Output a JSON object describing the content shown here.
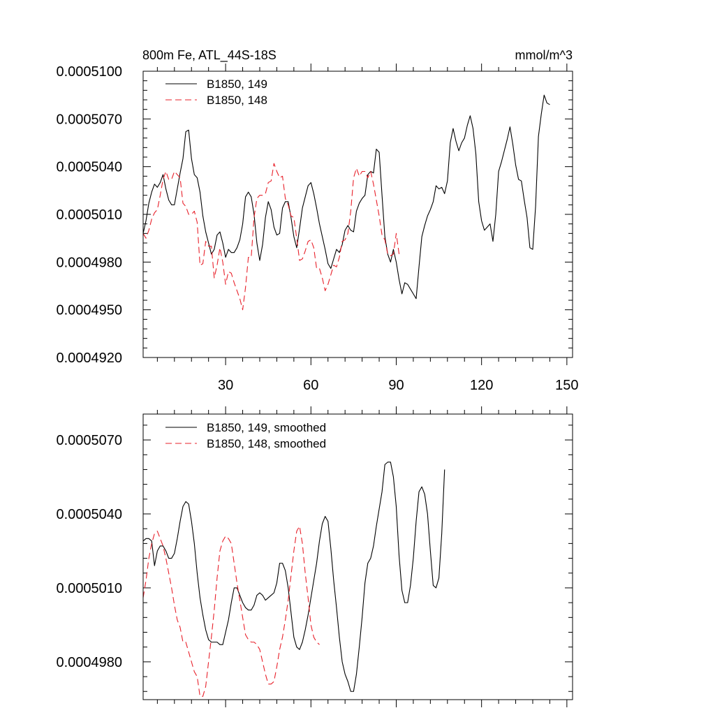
{
  "chart_data": [
    {
      "type": "line",
      "title": "800m Fe, ATL_44S-18S",
      "units": "mmol/m^3",
      "xlim": [
        1,
        152
      ],
      "ylim": [
        0.000492,
        0.00051
      ],
      "xticks": [
        30,
        60,
        90,
        120,
        150
      ],
      "xtick_labels": [
        "30",
        "60",
        "90",
        "120",
        "150"
      ],
      "yticks": [
        0.000492,
        0.000495,
        0.000498,
        0.000501,
        0.000504,
        0.000507,
        0.00051
      ],
      "ytick_labels": [
        "0.0004920",
        "0.0004950",
        "0.0004980",
        "0.0005010",
        "0.0005040",
        "0.0005070",
        "0.0005100"
      ],
      "legend_position": "top-left",
      "series": [
        {
          "name": "B1850, 149",
          "color": "#000000",
          "dash": "solid",
          "x_start": 1,
          "values": [
            0.0004998,
            0.0005006,
            0.0005017,
            0.0005024,
            0.0005029,
            0.0005027,
            0.000503,
            0.0005035,
            0.0005026,
            0.0005019,
            0.0005016,
            0.0005016,
            0.0005026,
            0.0005036,
            0.0005045,
            0.0005062,
            0.0005063,
            0.0005045,
            0.0005035,
            0.0005033,
            0.0005024,
            0.0005009,
            0.0004999,
            0.0004992,
            0.0004985,
            0.0004988,
            0.0004997,
            0.0004999,
            0.0004992,
            0.0004983,
            0.0004988,
            0.0004986,
            0.0004986,
            0.0004989,
            0.0004994,
            0.0005004,
            0.0005021,
            0.0005024,
            0.0005021,
            0.000501,
            0.0004992,
            0.0004981,
            0.0004991,
            0.0005008,
            0.0005018,
            0.0005013,
            0.0005002,
            0.0004997,
            0.0004998,
            0.0005014,
            0.0005018,
            0.0005018,
            0.0005008,
            0.0004996,
            0.0004989,
            0.0005001,
            0.0005014,
            0.0005021,
            0.0005028,
            0.000503,
            0.0005023,
            0.0005014,
            0.0005004,
            0.0004996,
            0.0004988,
            0.0004979,
            0.0004976,
            0.0004982,
            0.0004988,
            0.0004986,
            0.0004991,
            0.0005,
            0.0005003,
            0.0005,
            0.0004999,
            0.0005012,
            0.0005017,
            0.000502,
            0.0005022,
            0.0005035,
            0.0005037,
            0.0005036,
            0.0005051,
            0.0005049,
            0.0005022,
            0.0004996,
            0.0004985,
            0.000498,
            0.0004988,
            0.000498,
            0.0004969,
            0.000496,
            0.0004967,
            0.0004966,
            0.0004963,
            0.000496,
            0.0004957,
            0.0004977,
            0.0004996,
            0.0005003,
            0.0005009,
            0.0005013,
            0.0005018,
            0.0005028,
            0.0005026,
            0.0005027,
            0.0005023,
            0.0005031,
            0.0005055,
            0.0005064,
            0.0005056,
            0.000505,
            0.0005055,
            0.0005058,
            0.0005066,
            0.0005072,
            0.0005064,
            0.0005048,
            0.0005018,
            0.0005006,
            0.0005,
            0.0005002,
            0.0005004,
            0.0004993,
            0.000501,
            0.0005037,
            0.0005043,
            0.000505,
            0.0005057,
            0.0005065,
            0.0005054,
            0.0005041,
            0.0005032,
            0.0005031,
            0.0005019,
            0.0005008,
            0.0004989,
            0.0004988,
            0.0005015,
            0.0005059,
            0.0005073,
            0.0005085,
            0.000508,
            0.0005079
          ]
        },
        {
          "name": "B1850, 148",
          "color": "#e8202a",
          "dash": "dashed",
          "x_start": 1,
          "values": [
            0.0004998,
            0.0004995,
            0.0005,
            0.0005007,
            0.0005011,
            0.0005013,
            0.0005022,
            0.0005032,
            0.0005037,
            0.0005032,
            0.0005032,
            0.0005037,
            0.0005035,
            0.0005033,
            0.0005017,
            0.0005015,
            0.000501,
            0.000501,
            0.0005012,
            0.0005005,
            0.0004978,
            0.0004979,
            0.0004993,
            0.000499,
            0.000499,
            0.000497,
            0.0004978,
            0.0004989,
            0.000498,
            0.0004966,
            0.0004974,
            0.0004973,
            0.0004967,
            0.0004962,
            0.0004957,
            0.000495,
            0.0004964,
            0.0004983,
            0.0004983,
            0.0005008,
            0.000502,
            0.0005022,
            0.0005022,
            0.0005023,
            0.000503,
            0.0005031,
            0.0005042,
            0.0005037,
            0.0005033,
            0.0005034,
            0.000502,
            0.0005016,
            0.0005009,
            0.0005008,
            0.0004995,
            0.0004981,
            0.0004982,
            0.0004987,
            0.0004993,
            0.0004994,
            0.0004989,
            0.0004976,
            0.0004976,
            0.000497,
            0.0004962,
            0.0004966,
            0.0004972,
            0.0004978,
            0.0004977,
            0.0004983,
            0.0004993,
            0.0004994,
            0.0004998,
            0.0005012,
            0.0005033,
            0.0005039,
            0.0005034,
            0.0005037,
            0.0005037,
            0.0005033,
            0.0005037,
            0.0005029,
            0.0005019,
            0.0005009,
            0.0004997,
            0.0004994,
            0.0004985,
            0.0004984,
            0.0004985,
            0.0004998,
            0.0004985
          ]
        }
      ]
    },
    {
      "type": "line",
      "xlim": [
        1,
        152
      ],
      "ylim": [
        0.000496467,
        0.00050805
      ],
      "xticks": [
        30,
        60,
        90,
        120,
        150
      ],
      "yticks": [
        0.000498,
        0.000501,
        0.000504,
        0.000507
      ],
      "ytick_labels": [
        "0.0004980",
        "0.0005010",
        "0.0005040",
        "0.0005070"
      ],
      "legend_position": "top-left",
      "series": [
        {
          "name": "B1850, 149, smoothed",
          "color": "#000000",
          "dash": "solid",
          "x_start": 1,
          "values": [
            0.0005029,
            0.000503,
            0.000503,
            0.0005029,
            0.0005019,
            0.0005025,
            0.0005027,
            0.0005027,
            0.0005025,
            0.0005022,
            0.0005022,
            0.0005024,
            0.000503,
            0.0005037,
            0.0005043,
            0.0005045,
            0.0005044,
            0.0005037,
            0.0005028,
            0.0005016,
            0.0005006,
            0.0004999,
            0.0004993,
            0.0004989,
            0.0004988,
            0.0004988,
            0.0004988,
            0.0004987,
            0.0004987,
            0.0004992,
            0.0004997,
            0.0005004,
            0.000501,
            0.000501,
            0.0005007,
            0.0005004,
            0.0005002,
            0.0005001,
            0.0005001,
            0.0005003,
            0.0005007,
            0.0005008,
            0.0005007,
            0.0005005,
            0.0005006,
            0.0005007,
            0.0005008,
            0.0005012,
            0.000502,
            0.000502,
            0.0005017,
            0.000501,
            0.0005,
            0.000499,
            0.0004986,
            0.0004985,
            0.0004988,
            0.0004993,
            0.0004999,
            0.0005006,
            0.0005013,
            0.000502,
            0.0005029,
            0.0005036,
            0.0005039,
            0.0005037,
            0.0005026,
            0.0005013,
            0.0005002,
            0.000499,
            0.000498,
            0.0004975,
            0.0004972,
            0.0004968,
            0.0004968,
            0.0004975,
            0.0004986,
            0.0004998,
            0.0005012,
            0.000502,
            0.0005022,
            0.0005027,
            0.0005035,
            0.0005042,
            0.0005049,
            0.000506,
            0.0005061,
            0.0005061,
            0.0005055,
            0.0005043,
            0.0005023,
            0.0005009,
            0.0005004,
            0.0005004,
            0.0005011,
            0.0005022,
            0.0005037,
            0.0005049,
            0.0005051,
            0.0005048,
            0.000504,
            0.0005025,
            0.0005011,
            0.000501,
            0.0005014,
            0.0005032,
            0.0005058
          ]
        },
        {
          "name": "B1850, 148, smoothed",
          "color": "#e8202a",
          "dash": "dashed",
          "x_start": 1,
          "values": [
            0.0005006,
            0.0005013,
            0.0005022,
            0.0005028,
            0.0005032,
            0.0005033,
            0.000503,
            0.0005027,
            0.0005022,
            0.0005016,
            0.000501,
            0.0005003,
            0.0004997,
            0.0004994,
            0.0004988,
            0.0004988,
            0.0004984,
            0.000498,
            0.0004976,
            0.0004974,
            0.0004966,
            0.0004966,
            0.000497,
            0.000498,
            0.000499,
            0.0005001,
            0.0005014,
            0.0005025,
            0.0005029,
            0.0005031,
            0.000503,
            0.0005028,
            0.000502,
            0.0005012,
            0.0005005,
            0.0004998,
            0.0004991,
            0.0004989,
            0.0004988,
            0.0004988,
            0.0004987,
            0.0004985,
            0.000498,
            0.0004975,
            0.0004971,
            0.0004971,
            0.0004972,
            0.0004978,
            0.0004985,
            0.000499,
            0.0004997,
            0.0005005,
            0.0005015,
            0.0005025,
            0.0005033,
            0.0005035,
            0.0005028,
            0.0005016,
            0.0005006,
            0.0004995,
            0.000499,
            0.0004988,
            0.0004987
          ]
        }
      ]
    }
  ]
}
